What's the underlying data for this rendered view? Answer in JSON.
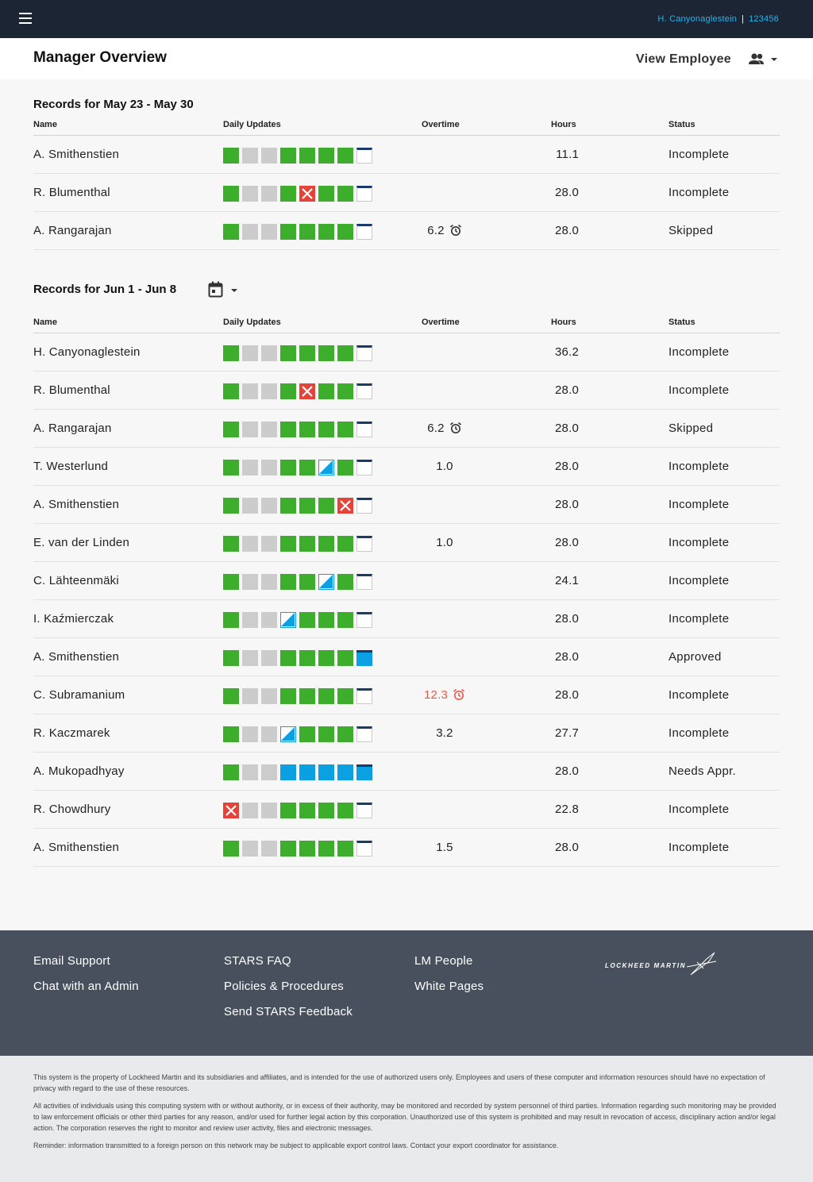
{
  "topbar": {
    "user_name": "H. Canyonaglestein",
    "separator": "|",
    "user_id": "123456"
  },
  "header": {
    "title": "Manager Overview",
    "view_employee": "View Employee"
  },
  "columns": {
    "name": "Name",
    "daily": "Daily Updates",
    "overtime": "Overtime",
    "hours": "Hours",
    "status": "Status"
  },
  "day_legend": {
    "G": "submitted",
    "L": "weekend",
    "B": "pending-approval",
    "X": "rejected",
    "H": "partial",
    "W": "open",
    "F": "open-approved"
  },
  "colors": {
    "green": "#3cae2c",
    "blue": "#0aa0e2",
    "red": "#e64338",
    "grey": "#cccccc",
    "navy": "#1b2534",
    "overtime_warning": "#e8584d"
  },
  "section1": {
    "title": "Records for May 23 - May 30",
    "rows": [
      {
        "name": "A. Smithenstien",
        "days": [
          "G",
          "L",
          "L",
          "G",
          "G",
          "G",
          "G",
          "W"
        ],
        "overtime": "",
        "alarm": false,
        "warn": false,
        "hours": "11.1",
        "status": "Incomplete"
      },
      {
        "name": "R. Blumenthal",
        "days": [
          "G",
          "L",
          "L",
          "G",
          "X",
          "G",
          "G",
          "W"
        ],
        "overtime": "",
        "alarm": false,
        "warn": false,
        "hours": "28.0",
        "status": "Incomplete"
      },
      {
        "name": "A. Rangarajan",
        "days": [
          "G",
          "L",
          "L",
          "G",
          "G",
          "G",
          "G",
          "W"
        ],
        "overtime": "6.2",
        "alarm": true,
        "warn": false,
        "hours": "28.0",
        "status": "Skipped"
      }
    ]
  },
  "section2": {
    "title": "Records for Jun 1 - Jun 8",
    "rows": [
      {
        "name": "H. Canyonaglestein",
        "days": [
          "G",
          "L",
          "L",
          "G",
          "G",
          "G",
          "G",
          "W"
        ],
        "overtime": "",
        "alarm": false,
        "warn": false,
        "hours": "36.2",
        "status": "Incomplete"
      },
      {
        "name": "R. Blumenthal",
        "days": [
          "G",
          "L",
          "L",
          "G",
          "X",
          "G",
          "G",
          "W"
        ],
        "overtime": "",
        "alarm": false,
        "warn": false,
        "hours": "28.0",
        "status": "Incomplete"
      },
      {
        "name": "A. Rangarajan",
        "days": [
          "G",
          "L",
          "L",
          "G",
          "G",
          "G",
          "G",
          "W"
        ],
        "overtime": "6.2",
        "alarm": true,
        "warn": false,
        "hours": "28.0",
        "status": "Skipped"
      },
      {
        "name": "T. Westerlund",
        "days": [
          "G",
          "L",
          "L",
          "G",
          "G",
          "H",
          "G",
          "W"
        ],
        "overtime": "1.0",
        "alarm": false,
        "warn": false,
        "hours": "28.0",
        "status": "Incomplete"
      },
      {
        "name": "A. Smithenstien",
        "days": [
          "G",
          "L",
          "L",
          "G",
          "G",
          "G",
          "X",
          "W"
        ],
        "overtime": "",
        "alarm": false,
        "warn": false,
        "hours": "28.0",
        "status": "Incomplete"
      },
      {
        "name": "E. van der Linden",
        "days": [
          "G",
          "L",
          "L",
          "G",
          "G",
          "G",
          "G",
          "W"
        ],
        "overtime": "1.0",
        "alarm": false,
        "warn": false,
        "hours": "28.0",
        "status": "Incomplete"
      },
      {
        "name": "C. Lähteenmäki",
        "days": [
          "G",
          "L",
          "L",
          "G",
          "G",
          "H",
          "G",
          "W"
        ],
        "overtime": "",
        "alarm": false,
        "warn": false,
        "hours": "24.1",
        "status": "Incomplete"
      },
      {
        "name": "I. Kaźmierczak",
        "days": [
          "G",
          "L",
          "L",
          "H",
          "G",
          "G",
          "G",
          "W"
        ],
        "overtime": "",
        "alarm": false,
        "warn": false,
        "hours": "28.0",
        "status": "Incomplete"
      },
      {
        "name": "A. Smithenstien",
        "days": [
          "G",
          "L",
          "L",
          "G",
          "G",
          "G",
          "G",
          "F"
        ],
        "overtime": "",
        "alarm": false,
        "warn": false,
        "hours": "28.0",
        "status": "Approved"
      },
      {
        "name": "C. Subramanium",
        "days": [
          "G",
          "L",
          "L",
          "G",
          "G",
          "G",
          "G",
          "W"
        ],
        "overtime": "12.3",
        "alarm": true,
        "warn": true,
        "hours": "28.0",
        "status": "Incomplete"
      },
      {
        "name": "R. Kaczmarek",
        "days": [
          "G",
          "L",
          "L",
          "H",
          "G",
          "G",
          "G",
          "W"
        ],
        "overtime": "3.2",
        "alarm": false,
        "warn": false,
        "hours": "27.7",
        "status": "Incomplete"
      },
      {
        "name": "A. Mukopadhyay",
        "days": [
          "G",
          "L",
          "L",
          "B",
          "B",
          "B",
          "B",
          "F"
        ],
        "overtime": "",
        "alarm": false,
        "warn": false,
        "hours": "28.0",
        "status": "Needs Appr."
      },
      {
        "name": "R. Chowdhury",
        "days": [
          "X",
          "L",
          "L",
          "G",
          "G",
          "G",
          "G",
          "W"
        ],
        "overtime": "",
        "alarm": false,
        "warn": false,
        "hours": "22.8",
        "status": "Incomplete"
      },
      {
        "name": "A. Smithenstien",
        "days": [
          "G",
          "L",
          "L",
          "G",
          "G",
          "G",
          "G",
          "W"
        ],
        "overtime": "1.5",
        "alarm": false,
        "warn": false,
        "hours": "28.0",
        "status": "Incomplete"
      }
    ]
  },
  "footer": {
    "col1": [
      "Email Support",
      "Chat with an Admin"
    ],
    "col2": [
      "STARS FAQ",
      "Policies & Procedures",
      "Send STARS Feedback"
    ],
    "col3": [
      "LM People",
      "White Pages"
    ],
    "logo_text": "LOCKHEED MARTIN"
  },
  "legal": [
    "This system is the property of Lockheed Martin and its subsidiaries and affiliates, and is intended for the use of authorized users only. Employees and users of these computer and information resources should have no expectation of privacy with regard to the use of these resources.",
    "All activities of individuals using this computing system with or without authority, or in excess of their authority, may be monitored and recorded by system personnel of third parties. Information regarding such monitoring may be provided to law enforcement officials or other third parties for any reason, and/or used for further legal action by this corporation. Unauthorized use of this system is prohibited and may result in revocation of access, disciplinary action and/or legal action. The corporation reserves the right to monitor and review user activity, files and electronic messages.",
    "Reminder: information transmitted to a foreign person on this network may be subject to applicable export control laws. Contact your export coordinator for assistance."
  ]
}
